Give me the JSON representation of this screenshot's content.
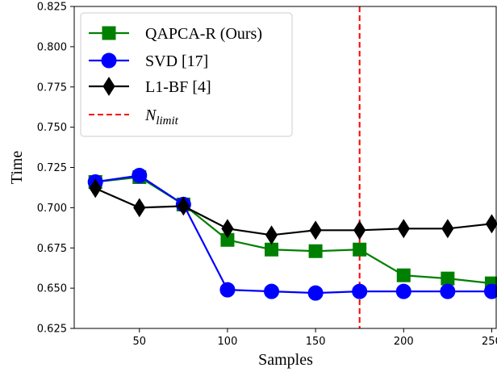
{
  "chart_data": {
    "type": "line",
    "xlabel": "Samples",
    "ylabel": "Time",
    "xlim": [
      13,
      253
    ],
    "ylim": [
      0.625,
      0.825
    ],
    "x_ticks": [
      50,
      100,
      150,
      200,
      250
    ],
    "y_ticks": [
      0.625,
      0.65,
      0.675,
      0.7,
      0.725,
      0.75,
      0.775,
      0.8,
      0.825
    ],
    "x_tick_labels": [
      "50",
      "100",
      "150",
      "200",
      "250"
    ],
    "y_tick_labels": [
      "0.625",
      "0.650",
      "0.675",
      "0.700",
      "0.725",
      "0.750",
      "0.775",
      "0.800",
      "0.825"
    ],
    "grid": false,
    "legend_position": "top-left",
    "x": [
      25,
      50,
      75,
      100,
      125,
      150,
      175,
      200,
      225,
      250
    ],
    "series": [
      {
        "name": "QAPCA-R (Ours)",
        "color": "#008000",
        "marker": "square",
        "values": [
          0.716,
          0.719,
          0.702,
          0.68,
          0.674,
          0.673,
          0.674,
          0.658,
          0.656,
          0.653
        ]
      },
      {
        "name": "SVD [17]",
        "color": "#0000ff",
        "marker": "circle",
        "values": [
          0.716,
          0.72,
          0.702,
          0.649,
          0.648,
          0.647,
          0.648,
          0.648,
          0.648,
          0.648
        ]
      },
      {
        "name": "L1-BF [4]",
        "color": "#000000",
        "marker": "diamond",
        "values": [
          0.712,
          0.7,
          0.701,
          0.687,
          0.683,
          0.686,
          0.686,
          0.687,
          0.687,
          0.69
        ]
      }
    ],
    "vline": {
      "name_base": "N",
      "name_sub": "limit",
      "x": 175,
      "color": "#ff0000",
      "style": "dashed"
    }
  }
}
